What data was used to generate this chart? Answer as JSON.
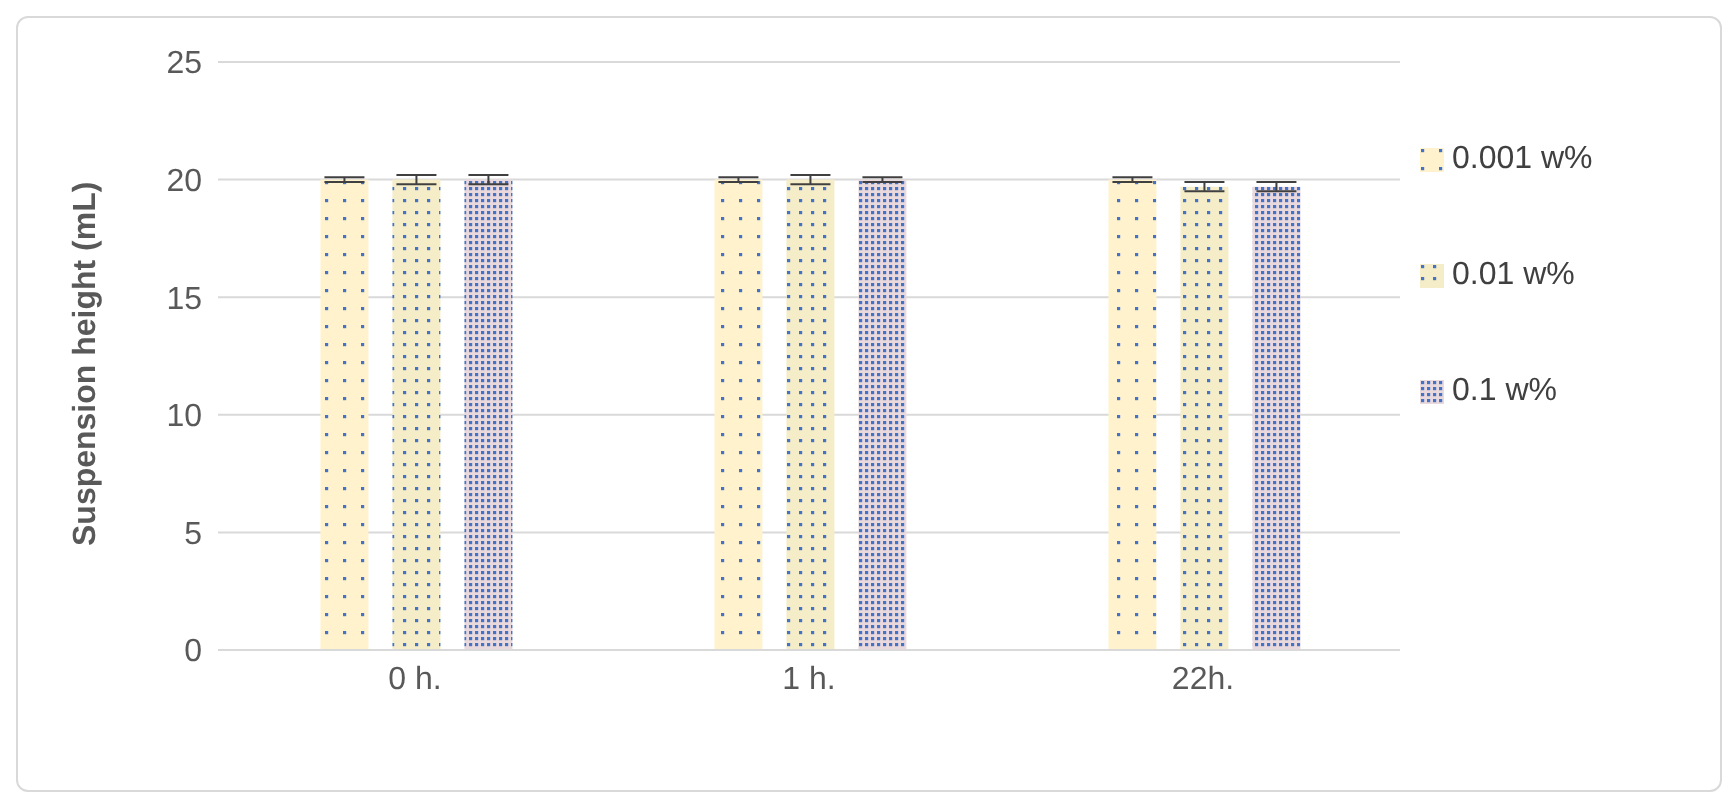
{
  "chart_data": {
    "type": "bar",
    "ylabel": "Suspension height (mL)",
    "categories": [
      "0 h.",
      "1 h.",
      "22h."
    ],
    "series": [
      {
        "name": "0.001 w%",
        "color": "#fff2cc",
        "values": [
          20,
          20,
          20
        ],
        "errors": [
          0.1,
          0.1,
          0.1
        ]
      },
      {
        "name": "0.01 w%",
        "color": "#f5ecc8",
        "values": [
          20,
          20,
          19.7
        ],
        "errors": [
          0.2,
          0.2,
          0.2
        ]
      },
      {
        "name": "0.1 w%",
        "color": "#ead9dc",
        "values": [
          20,
          20,
          19.7
        ],
        "errors": [
          0.2,
          0.1,
          0.2
        ]
      }
    ],
    "ylim": [
      0,
      25
    ],
    "yticks": [
      0,
      5,
      10,
      15,
      20,
      25
    ],
    "grid": "y",
    "legend": "right"
  }
}
